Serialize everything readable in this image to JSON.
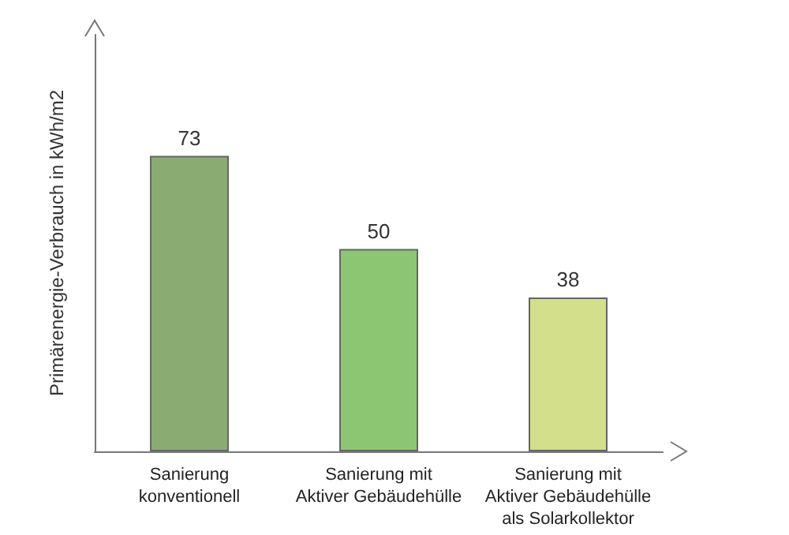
{
  "chart_data": {
    "type": "bar",
    "ylabel": "Primärenergie-Verbrauch in kWh/m2",
    "categories": [
      "Sanierung\nkonventionell",
      "Sanierung mit\nAktiver Gebäudehülle",
      "Sanierung mit\nAktiver Gebäudehülle\nals Solarkollektor"
    ],
    "values": [
      73,
      50,
      38
    ],
    "colors": [
      "#8aac72",
      "#8cc673",
      "#d3df8b"
    ],
    "data_labels": true
  }
}
